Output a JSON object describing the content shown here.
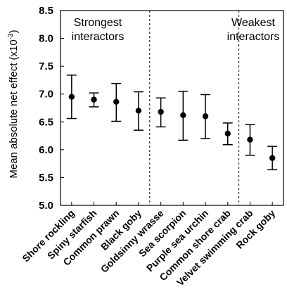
{
  "chart_data": {
    "type": "scatter",
    "ylabel": "Mean absolute net effect (x10",
    "ylabel_sup": "-3",
    "ylabel_end": ")",
    "ylim": [
      5.0,
      8.5
    ],
    "yticks": [
      "5.0",
      "5.5",
      "6.0",
      "6.5",
      "7.0",
      "7.5",
      "8.0",
      "8.5"
    ],
    "categories": [
      "Shore rockling",
      "Spiny starfish",
      "Common prawn",
      "Black goby",
      "Goldsinny wrasse",
      "Sea scorpion",
      "Purple sea urchin",
      "Common shore crab",
      "Velvet swimming crab",
      "Rock goby"
    ],
    "values": [
      6.95,
      6.9,
      6.86,
      6.7,
      6.68,
      6.62,
      6.6,
      6.29,
      6.18,
      5.85
    ],
    "lower": [
      6.56,
      6.77,
      6.51,
      6.35,
      6.41,
      6.17,
      6.2,
      6.09,
      5.9,
      5.64
    ],
    "upper": [
      7.34,
      7.02,
      7.19,
      7.04,
      6.93,
      7.05,
      6.99,
      6.48,
      6.45,
      6.06
    ],
    "group_dividers_after_index": [
      3,
      7
    ],
    "group_labels": {
      "strongest": [
        "Strongest",
        "interactors"
      ],
      "weakest": [
        "Weakest",
        "interactors"
      ]
    },
    "grid": false,
    "marker_color": "#000000"
  }
}
